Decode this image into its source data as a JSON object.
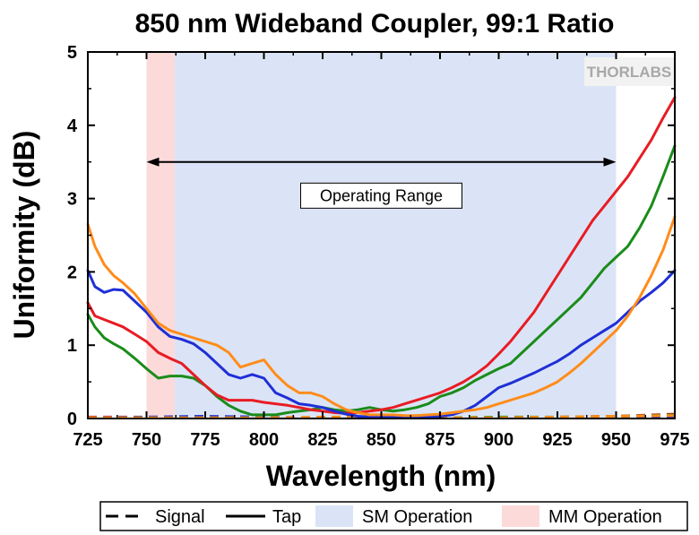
{
  "chart_data": {
    "type": "line",
    "title": "850 nm Wideband Coupler, 99:1 Ratio",
    "xlabel": "Wavelength (nm)",
    "ylabel": "Uniformity (dB)",
    "xlim": [
      725,
      975
    ],
    "ylim": [
      0,
      5
    ],
    "xticks": [
      725,
      750,
      775,
      800,
      825,
      850,
      875,
      900,
      925,
      950,
      975
    ],
    "yticks": [
      0,
      1,
      2,
      3,
      4,
      5
    ],
    "grid": false,
    "legend": {
      "placement": "bottom",
      "entries": [
        {
          "key": "signal",
          "label": "Signal",
          "style": "dashed-line"
        },
        {
          "key": "tap",
          "label": "Tap",
          "style": "solid-line"
        },
        {
          "key": "sm",
          "label": "SM Operation",
          "style": "patch",
          "color": "#dbe4f6"
        },
        {
          "key": "mm",
          "label": "MM Operation",
          "style": "patch",
          "color": "#fcdada"
        }
      ]
    },
    "regions": [
      {
        "key": "mm",
        "x": [
          750,
          762
        ],
        "color": "#fcdada"
      },
      {
        "key": "sm",
        "x": [
          762,
          950
        ],
        "color": "#dbe4f6"
      }
    ],
    "annotation": {
      "text": "Operating Range",
      "arrow_x": [
        750,
        950
      ],
      "arrow_y": 3.5,
      "box_y": 3.04
    },
    "series": [
      {
        "key": "tap-orange",
        "style": "solid",
        "color": "#ff8c1a",
        "x": [
          725,
          728,
          732,
          736,
          740,
          745,
          750,
          755,
          760,
          765,
          770,
          775,
          780,
          785,
          790,
          795,
          800,
          805,
          810,
          815,
          820,
          825,
          830,
          835,
          840,
          845,
          850,
          855,
          860,
          865,
          870,
          875,
          880,
          885,
          890,
          895,
          900,
          905,
          910,
          915,
          920,
          925,
          930,
          935,
          940,
          945,
          950,
          955,
          960,
          965,
          970,
          975
        ],
        "y": [
          2.65,
          2.35,
          2.1,
          1.95,
          1.85,
          1.7,
          1.5,
          1.3,
          1.2,
          1.15,
          1.1,
          1.05,
          1.0,
          0.9,
          0.7,
          0.75,
          0.8,
          0.6,
          0.45,
          0.35,
          0.35,
          0.3,
          0.2,
          0.12,
          0.08,
          0.05,
          0.05,
          0.05,
          0.04,
          0.04,
          0.05,
          0.06,
          0.08,
          0.1,
          0.12,
          0.15,
          0.2,
          0.25,
          0.3,
          0.35,
          0.42,
          0.5,
          0.62,
          0.75,
          0.9,
          1.05,
          1.2,
          1.4,
          1.65,
          1.95,
          2.3,
          2.75
        ]
      },
      {
        "key": "tap-blue",
        "style": "solid",
        "color": "#1f2fd6",
        "x": [
          725,
          728,
          732,
          736,
          740,
          745,
          750,
          755,
          760,
          765,
          770,
          775,
          780,
          785,
          790,
          795,
          800,
          805,
          810,
          815,
          820,
          825,
          830,
          835,
          840,
          845,
          850,
          855,
          860,
          865,
          870,
          875,
          880,
          885,
          890,
          895,
          900,
          905,
          910,
          915,
          920,
          925,
          930,
          935,
          940,
          945,
          950,
          955,
          960,
          965,
          970,
          975
        ],
        "y": [
          2.02,
          1.8,
          1.72,
          1.76,
          1.75,
          1.6,
          1.45,
          1.25,
          1.12,
          1.08,
          1.02,
          0.9,
          0.75,
          0.6,
          0.55,
          0.6,
          0.55,
          0.35,
          0.28,
          0.2,
          0.18,
          0.15,
          0.1,
          0.06,
          0.03,
          0.02,
          0.02,
          0.02,
          0.02,
          0.02,
          0.02,
          0.03,
          0.05,
          0.1,
          0.18,
          0.3,
          0.42,
          0.48,
          0.55,
          0.62,
          0.7,
          0.78,
          0.88,
          1.0,
          1.1,
          1.2,
          1.3,
          1.45,
          1.6,
          1.72,
          1.85,
          2.02
        ]
      },
      {
        "key": "tap-red",
        "style": "solid",
        "color": "#e81c24",
        "x": [
          725,
          728,
          732,
          736,
          740,
          745,
          750,
          755,
          760,
          765,
          770,
          775,
          780,
          785,
          790,
          795,
          800,
          805,
          810,
          815,
          820,
          825,
          830,
          835,
          840,
          845,
          850,
          855,
          860,
          865,
          870,
          875,
          880,
          885,
          890,
          895,
          900,
          905,
          910,
          915,
          920,
          925,
          930,
          935,
          940,
          945,
          950,
          955,
          960,
          965,
          970,
          975
        ],
        "y": [
          1.58,
          1.4,
          1.35,
          1.3,
          1.25,
          1.15,
          1.05,
          0.9,
          0.82,
          0.75,
          0.6,
          0.45,
          0.32,
          0.25,
          0.25,
          0.25,
          0.22,
          0.2,
          0.18,
          0.15,
          0.12,
          0.1,
          0.08,
          0.07,
          0.08,
          0.1,
          0.12,
          0.15,
          0.2,
          0.25,
          0.3,
          0.35,
          0.42,
          0.5,
          0.6,
          0.72,
          0.88,
          1.05,
          1.25,
          1.45,
          1.7,
          1.95,
          2.2,
          2.45,
          2.7,
          2.9,
          3.1,
          3.3,
          3.55,
          3.8,
          4.1,
          4.38
        ]
      },
      {
        "key": "tap-green",
        "style": "solid",
        "color": "#1a8c1a",
        "x": [
          725,
          728,
          732,
          736,
          740,
          745,
          750,
          755,
          760,
          765,
          770,
          775,
          780,
          785,
          790,
          795,
          800,
          805,
          810,
          815,
          820,
          825,
          830,
          835,
          840,
          845,
          850,
          855,
          860,
          865,
          870,
          875,
          880,
          885,
          890,
          895,
          900,
          905,
          910,
          915,
          920,
          925,
          930,
          935,
          940,
          945,
          950,
          955,
          960,
          965,
          970,
          975
        ],
        "y": [
          1.42,
          1.25,
          1.1,
          1.02,
          0.95,
          0.82,
          0.68,
          0.55,
          0.58,
          0.58,
          0.55,
          0.45,
          0.3,
          0.18,
          0.1,
          0.05,
          0.05,
          0.05,
          0.08,
          0.1,
          0.12,
          0.15,
          0.12,
          0.1,
          0.12,
          0.15,
          0.12,
          0.1,
          0.12,
          0.15,
          0.2,
          0.3,
          0.35,
          0.42,
          0.52,
          0.6,
          0.68,
          0.75,
          0.9,
          1.05,
          1.2,
          1.35,
          1.5,
          1.65,
          1.85,
          2.05,
          2.2,
          2.35,
          2.6,
          2.9,
          3.3,
          3.72
        ]
      },
      {
        "key": "sig-red",
        "style": "dashed",
        "color": "#e81c24",
        "x": [
          725,
          750,
          775,
          800,
          825,
          850,
          875,
          900,
          925,
          950,
          975
        ],
        "y": [
          0.02,
          0.02,
          0.01,
          0.01,
          0.01,
          0.01,
          0.01,
          0.01,
          0.02,
          0.03,
          0.06
        ]
      },
      {
        "key": "sig-blue",
        "style": "dashed",
        "color": "#1f2fd6",
        "x": [
          725,
          750,
          775,
          800,
          825,
          850,
          875,
          900,
          925,
          950,
          975
        ],
        "y": [
          0.01,
          0.02,
          0.03,
          0.02,
          0.01,
          0.01,
          0.01,
          0.01,
          0.01,
          0.01,
          0.02
        ]
      },
      {
        "key": "sig-green",
        "style": "dashed",
        "color": "#1a8c1a",
        "x": [
          725,
          750,
          775,
          800,
          825,
          850,
          875,
          900,
          925,
          950,
          975
        ],
        "y": [
          0.01,
          0.01,
          0.01,
          0.01,
          0.01,
          0.01,
          0.01,
          0.02,
          0.02,
          0.03,
          0.05
        ]
      },
      {
        "key": "sig-orange",
        "style": "dashed",
        "color": "#ff8c1a",
        "x": [
          725,
          750,
          775,
          800,
          825,
          850,
          875,
          900,
          925,
          950,
          975
        ],
        "y": [
          0.01,
          0.01,
          0.01,
          0.01,
          0.02,
          0.02,
          0.01,
          0.01,
          0.02,
          0.03,
          0.04
        ]
      }
    ]
  },
  "logo": {
    "text": "THORLABS"
  }
}
